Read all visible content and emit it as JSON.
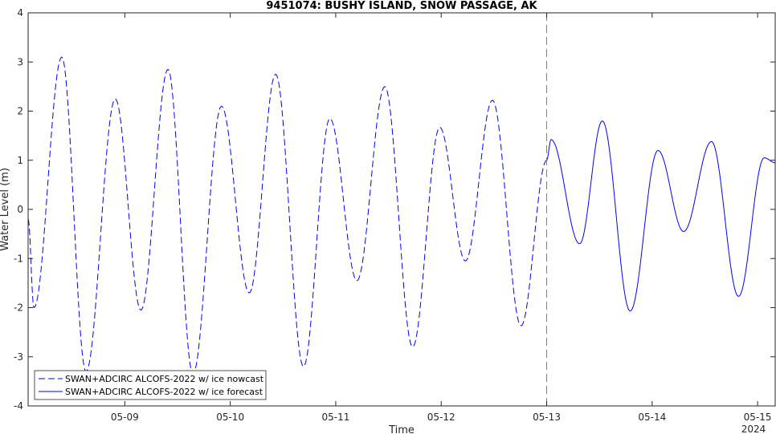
{
  "chart_data": {
    "type": "line",
    "title": "9451074: BUSHY ISLAND, SNOW PASSAGE, AK",
    "xlabel": "Time",
    "ylabel": "Water Level (m)",
    "x_year_label": "2024",
    "x_range": [
      "2024-05-08T02:00",
      "2024-05-15T04:00"
    ],
    "ylim": [
      -4,
      4
    ],
    "y_ticks": [
      -4,
      -3,
      -2,
      -1,
      0,
      1,
      2,
      3,
      4
    ],
    "x_ticks": [
      {
        "date": "2024-05-09",
        "label": "05-09"
      },
      {
        "date": "2024-05-10",
        "label": "05-10"
      },
      {
        "date": "2024-05-11",
        "label": "05-11"
      },
      {
        "date": "2024-05-12",
        "label": "05-12"
      },
      {
        "date": "2024-05-13",
        "label": "05-13"
      },
      {
        "date": "2024-05-14",
        "label": "05-14"
      },
      {
        "date": "2024-05-15",
        "label": "05-15"
      }
    ],
    "vline": {
      "date": "2024-05-13T00:00",
      "style": "dashed",
      "color": "#7f7f7f"
    },
    "grid": false,
    "legend_position": "bottom-left",
    "series": [
      {
        "name": "SWAN+ADCIRC ALCOFS-2022 w/ ice nowcast",
        "style": "dashed",
        "color": "#0000ff",
        "extrema": [
          {
            "t": "2024-05-08T02:00",
            "v": -0.2
          },
          {
            "t": "2024-05-08T03:20",
            "v": -2.0
          },
          {
            "t": "2024-05-08T09:40",
            "v": 3.1
          },
          {
            "t": "2024-05-08T15:10",
            "v": -3.3
          },
          {
            "t": "2024-05-08T21:50",
            "v": 2.25
          },
          {
            "t": "2024-05-09T03:40",
            "v": -2.05
          },
          {
            "t": "2024-05-09T09:50",
            "v": 2.85
          },
          {
            "t": "2024-05-09T15:30",
            "v": -3.35
          },
          {
            "t": "2024-05-09T22:00",
            "v": 2.1
          },
          {
            "t": "2024-05-10T04:20",
            "v": -1.7
          },
          {
            "t": "2024-05-10T10:20",
            "v": 2.75
          },
          {
            "t": "2024-05-10T16:40",
            "v": -3.2
          },
          {
            "t": "2024-05-10T22:40",
            "v": 1.85
          },
          {
            "t": "2024-05-11T04:50",
            "v": -1.45
          },
          {
            "t": "2024-05-11T11:10",
            "v": 2.5
          },
          {
            "t": "2024-05-11T17:30",
            "v": -2.8
          },
          {
            "t": "2024-05-11T23:40",
            "v": 1.67
          },
          {
            "t": "2024-05-12T05:30",
            "v": -1.05
          },
          {
            "t": "2024-05-12T11:40",
            "v": 2.22
          },
          {
            "t": "2024-05-12T18:10",
            "v": -2.37
          },
          {
            "t": "2024-05-13T00:00",
            "v": 1.0
          }
        ]
      },
      {
        "name": "SWAN+ADCIRC ALCOFS-2022 w/ ice forecast",
        "style": "solid",
        "color": "#0000ff",
        "extrema": [
          {
            "t": "2024-05-13T00:00",
            "v": 1.0
          },
          {
            "t": "2024-05-13T01:00",
            "v": 1.42
          },
          {
            "t": "2024-05-13T07:30",
            "v": -0.7
          },
          {
            "t": "2024-05-13T12:40",
            "v": 1.8
          },
          {
            "t": "2024-05-13T19:00",
            "v": -2.07
          },
          {
            "t": "2024-05-14T01:20",
            "v": 1.2
          },
          {
            "t": "2024-05-14T07:10",
            "v": -0.45
          },
          {
            "t": "2024-05-14T13:30",
            "v": 1.38
          },
          {
            "t": "2024-05-14T19:40",
            "v": -1.77
          },
          {
            "t": "2024-05-15T01:30",
            "v": 1.05
          },
          {
            "t": "2024-05-15T04:00",
            "v": 0.95
          }
        ]
      }
    ]
  }
}
